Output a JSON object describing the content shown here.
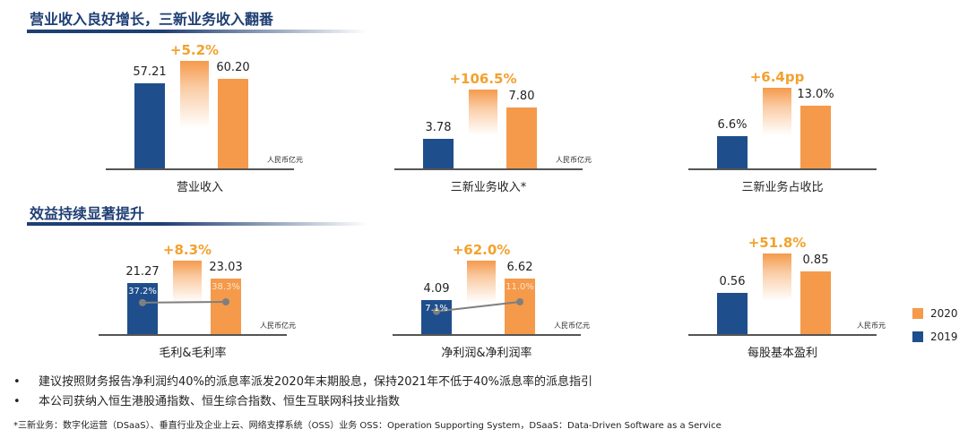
{
  "sections": [
    {
      "title": "营业收入良好增长，三新业务收入翻番"
    },
    {
      "title": "效益持续显著提升"
    }
  ],
  "colors": {
    "2019": "#1f4e8c",
    "2020": "#f59a4b",
    "growth": "#f3a12e",
    "rate_line": "#7f7f7f"
  },
  "legend": [
    {
      "label": "2020",
      "color": "#f59a4b"
    },
    {
      "label": "2019",
      "color": "#1f4e8c"
    }
  ],
  "chart_data": [
    {
      "type": "bar",
      "title": "营业收入",
      "categories": [
        "2019",
        "2020"
      ],
      "values": [
        57.21,
        60.2
      ],
      "labels": [
        "57.21",
        "60.20"
      ],
      "growth": "+5.2%",
      "unit": "人民币亿元"
    },
    {
      "type": "bar",
      "title": "三新业务收入*",
      "categories": [
        "2019",
        "2020"
      ],
      "values": [
        3.78,
        7.8
      ],
      "labels": [
        "3.78",
        "7.80"
      ],
      "growth": "+106.5%",
      "unit": "人民币亿元"
    },
    {
      "type": "bar",
      "title": "三新业务占收比",
      "categories": [
        "2019",
        "2020"
      ],
      "values": [
        6.6,
        13.0
      ],
      "labels": [
        "6.6%",
        "13.0%"
      ],
      "growth": "+6.4pp",
      "unit": ""
    },
    {
      "type": "bar",
      "title": "毛利&毛利率",
      "categories": [
        "2019",
        "2020"
      ],
      "values": [
        21.27,
        23.03
      ],
      "labels": [
        "21.27",
        "23.03"
      ],
      "growth": "+8.3%",
      "unit": "人民币亿元",
      "rates": [
        37.2,
        38.3
      ],
      "rate_labels": [
        "37.2%",
        "38.3%"
      ]
    },
    {
      "type": "bar",
      "title": "净利润&净利润率",
      "categories": [
        "2019",
        "2020"
      ],
      "values": [
        4.09,
        6.62
      ],
      "labels": [
        "4.09",
        "6.62"
      ],
      "growth": "+62.0%",
      "unit": "人民币亿元",
      "rates": [
        7.1,
        11.0
      ],
      "rate_labels": [
        "7.1%",
        "11.0%"
      ]
    },
    {
      "type": "bar",
      "title": "每股基本盈利",
      "categories": [
        "2019",
        "2020"
      ],
      "values": [
        0.56,
        0.85
      ],
      "labels": [
        "0.56",
        "0.85"
      ],
      "growth": "+51.8%",
      "unit": "人民币元"
    }
  ],
  "bullets": [
    "建议按照财务报告净利润约40%的派息率派发2020年末期股息，保持2021年不低于40%派息率的派息指引",
    "本公司获纳入恒生港股通指数、恒生综合指数、恒生互联网科技业指数"
  ],
  "bullet_symbol": "•",
  "footnote": "*三新业务：数字化运营（DSaaS）、垂直行业及企业上云、网络支撑系统（OSS）业务    OSS：Operation Supporting System，DSaaS：Data-Driven Software as a Service"
}
